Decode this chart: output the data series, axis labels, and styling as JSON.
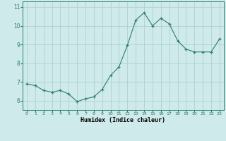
{
  "x": [
    0,
    1,
    2,
    3,
    4,
    5,
    6,
    7,
    8,
    9,
    10,
    11,
    12,
    13,
    14,
    15,
    16,
    17,
    18,
    19,
    20,
    21,
    22,
    23
  ],
  "y": [
    6.9,
    6.8,
    6.55,
    6.45,
    6.55,
    6.35,
    5.95,
    6.1,
    6.2,
    6.6,
    7.35,
    7.8,
    8.95,
    10.3,
    10.7,
    10.0,
    10.4,
    10.1,
    9.2,
    8.75,
    8.6,
    8.6,
    8.6,
    9.3
  ],
  "xlabel": "Humidex (Indice chaleur)",
  "line_color": "#2e7d6e",
  "bg_color": "#ceeaea",
  "grid_color": "#b0d0d0",
  "ylim": [
    5.5,
    11.3
  ],
  "xlim": [
    -0.5,
    23.5
  ],
  "yticks": [
    6,
    7,
    8,
    9,
    10,
    11
  ],
  "xticks": [
    0,
    1,
    2,
    3,
    4,
    5,
    6,
    7,
    8,
    9,
    10,
    11,
    12,
    13,
    14,
    15,
    16,
    17,
    18,
    19,
    20,
    21,
    22,
    23
  ]
}
